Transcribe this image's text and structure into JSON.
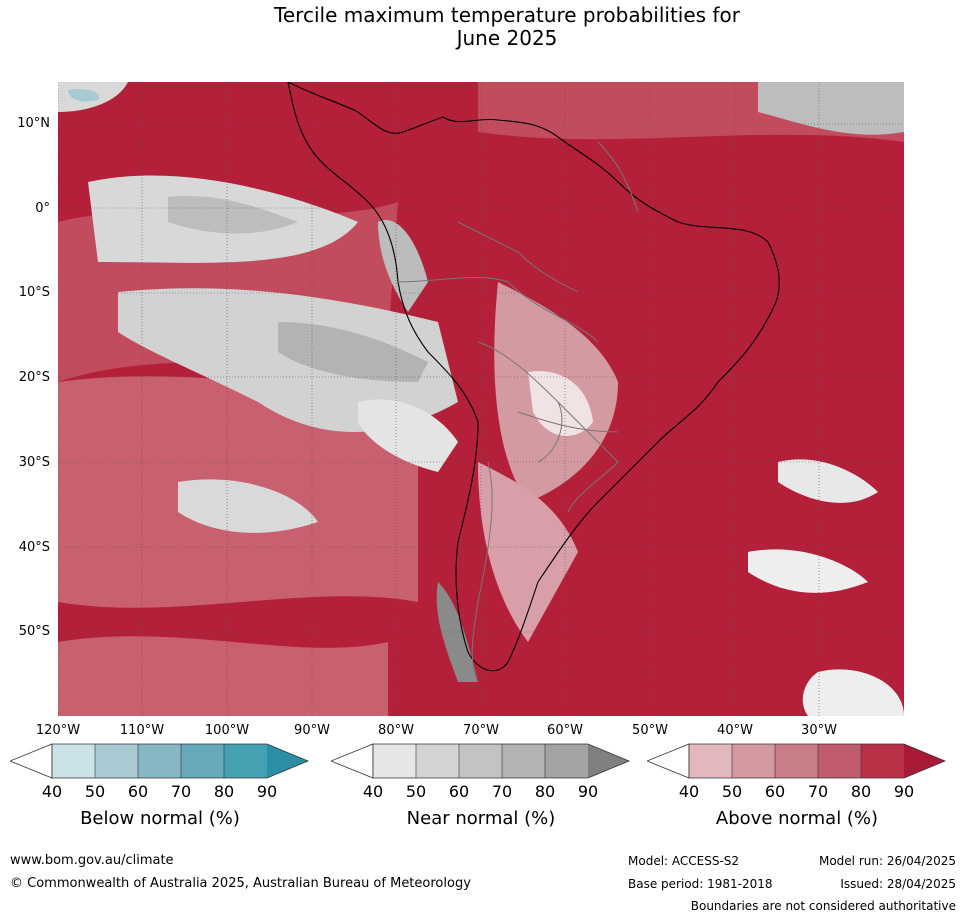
{
  "title_line1": "Tercile maximum temperature probabilities for",
  "title_line2": "June 2025",
  "lat_labels": [
    "10°N",
    "0°",
    "10°S",
    "20°S",
    "30°S",
    "40°S",
    "50°S"
  ],
  "lon_labels": [
    "120°W",
    "110°W",
    "100°W",
    "90°W",
    "80°W",
    "70°W",
    "60°W",
    "50°W",
    "40°W",
    "30°W"
  ],
  "colorbars": [
    {
      "title": "Below normal (%)",
      "ticks": [
        "40",
        "50",
        "60",
        "70",
        "80",
        "90"
      ],
      "colors": [
        "#ffffff",
        "#cbe2e8",
        "#a8cad3",
        "#88b7c4",
        "#66a9bb",
        "#45a0b2",
        "#2d8fa3"
      ]
    },
    {
      "title": "Near normal (%)",
      "ticks": [
        "40",
        "50",
        "60",
        "70",
        "80",
        "90"
      ],
      "colors": [
        "#ffffff",
        "#e6e6e6",
        "#d4d4d4",
        "#c3c3c3",
        "#b3b3b3",
        "#a3a3a3",
        "#808080"
      ]
    },
    {
      "title": "Above normal (%)",
      "ticks": [
        "40",
        "50",
        "60",
        "70",
        "80",
        "90"
      ],
      "colors": [
        "#ffffff",
        "#e2b8be",
        "#d49aa2",
        "#c97d87",
        "#c05c6b",
        "#b83146",
        "#a81a35"
      ]
    }
  ],
  "footer": {
    "website": "www.bom.gov.au/climate",
    "copyright": "© Commonwealth of Australia 2025, Australian Bureau of Meteorology",
    "model": "Model: ACCESS-S2",
    "base_period": "Base period: 1981-2018",
    "model_run": "Model run: 26/04/2025",
    "issued": "Issued: 28/04/2025",
    "disclaimer": "Boundaries are not considered authoritative"
  }
}
